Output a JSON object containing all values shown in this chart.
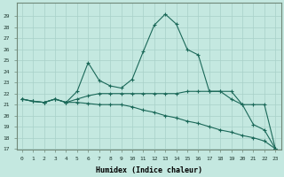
{
  "xlabel": "Humidex (Indice chaleur)",
  "background_color": "#c4e8e0",
  "grid_color": "#a8d0c8",
  "line_color": "#1a6858",
  "xlim": [
    -0.5,
    23.5
  ],
  "ylim": [
    17,
    30
  ],
  "yticks": [
    17,
    18,
    19,
    20,
    21,
    22,
    23,
    24,
    25,
    26,
    27,
    28,
    29
  ],
  "xticks": [
    0,
    1,
    2,
    3,
    4,
    5,
    6,
    7,
    8,
    9,
    10,
    11,
    12,
    13,
    14,
    15,
    16,
    17,
    18,
    19,
    20,
    21,
    22,
    23
  ],
  "series": [
    [
      21.5,
      21.3,
      21.2,
      21.5,
      21.2,
      22.2,
      24.8,
      23.2,
      22.7,
      22.5,
      23.3,
      25.8,
      28.2,
      29.2,
      28.3,
      26.0,
      25.5,
      22.2,
      22.2,
      21.5,
      21.0,
      19.2,
      18.7,
      17.0
    ],
    [
      21.5,
      21.3,
      21.2,
      21.5,
      21.2,
      21.5,
      21.8,
      22.0,
      22.0,
      22.0,
      22.0,
      22.0,
      22.0,
      22.0,
      22.0,
      22.2,
      22.2,
      22.2,
      22.2,
      22.2,
      21.0,
      21.0,
      21.0,
      17.0
    ],
    [
      21.5,
      21.3,
      21.2,
      21.5,
      21.2,
      21.2,
      21.1,
      21.0,
      21.0,
      21.0,
      20.8,
      20.5,
      20.3,
      20.0,
      19.8,
      19.5,
      19.3,
      19.0,
      18.7,
      18.5,
      18.2,
      18.0,
      17.7,
      17.0
    ]
  ]
}
